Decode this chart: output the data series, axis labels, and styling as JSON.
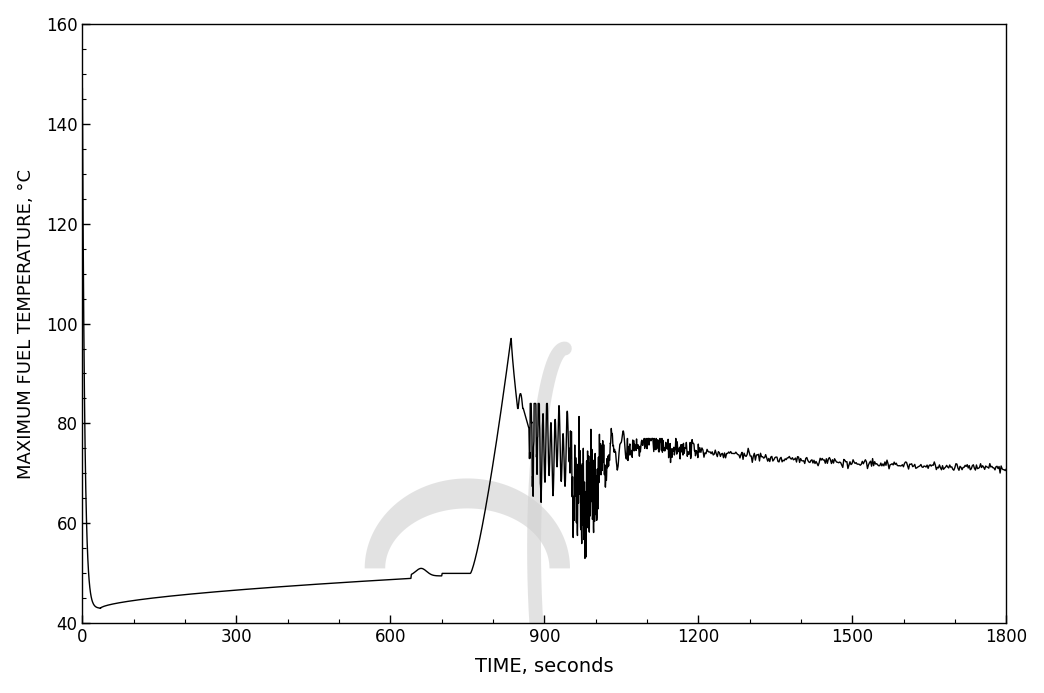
{
  "xlabel": "TIME, seconds",
  "ylabel": "MAXIMUM FUEL TEMPERATURE, °C",
  "xlim": [
    0,
    1800
  ],
  "ylim": [
    40,
    160
  ],
  "xticks": [
    0,
    300,
    600,
    900,
    1200,
    1500,
    1800
  ],
  "yticks": [
    40,
    60,
    80,
    100,
    120,
    140,
    160
  ],
  "line_color": "#000000",
  "line_width": 1.0,
  "background_color": "#ffffff",
  "figsize": [
    10.44,
    6.93
  ],
  "dpi": 100,
  "xlabel_fontsize": 14,
  "ylabel_fontsize": 13,
  "tick_fontsize": 12,
  "watermark_color": "#d0d0d0",
  "watermark_alpha": 0.6
}
